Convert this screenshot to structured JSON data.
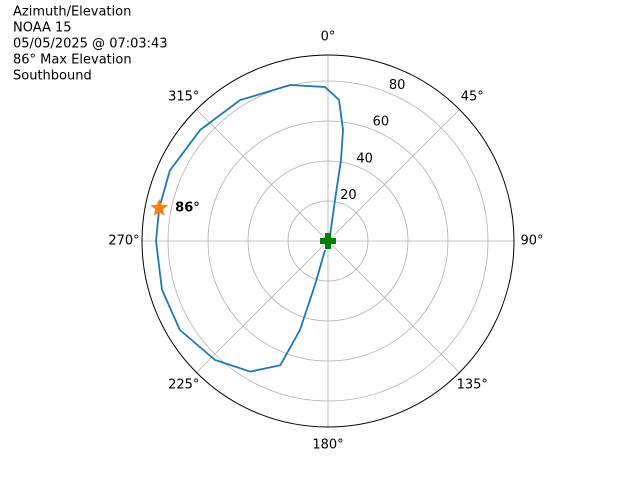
{
  "chart_data": {
    "type": "polar",
    "title_lines": [
      "Azimuth/Elevation",
      "NOAA 15",
      "05/05/2025 @ 07:03:43",
      "86° Max Elevation",
      "Southbound"
    ],
    "theta_zero": "N",
    "theta_direction": "clockwise",
    "rlim": [
      0,
      93
    ],
    "rticks": [
      20,
      40,
      60,
      80
    ],
    "thetaticks": [
      {
        "value": 0,
        "label": "0°"
      },
      {
        "value": 45,
        "label": "45°"
      },
      {
        "value": 90,
        "label": "90°"
      },
      {
        "value": 135,
        "label": "135°"
      },
      {
        "value": 180,
        "label": "180°"
      },
      {
        "value": 225,
        "label": "225°"
      },
      {
        "value": 270,
        "label": "270°"
      },
      {
        "value": 315,
        "label": "315°"
      }
    ],
    "grid": true,
    "series": [
      {
        "color": "#1f77b4",
        "azimuth": [
          0,
          22,
          9.7,
          9.1,
          7.7,
          4.5,
          358.9,
          346.3,
          328,
          311,
          294,
          281,
          270,
          253.6,
          239,
          223.5,
          210.8,
          201,
          197.5,
          196.5,
          198
        ],
        "elevation": [
          0,
          2.7,
          20.8,
          41,
          56,
          70.7,
          77,
          80.3,
          83,
          84.7,
          86.6,
          86,
          86,
          86.5,
          86.4,
          82,
          76,
          66.5,
          46.6,
          23,
          4.7
        ]
      }
    ],
    "start": {
      "azimuth": 0,
      "elevation": 0,
      "color": "#008000"
    },
    "max_point": {
      "azimuth": 281,
      "elevation": 86,
      "label": "86°",
      "color": "#ff7f0e"
    }
  }
}
